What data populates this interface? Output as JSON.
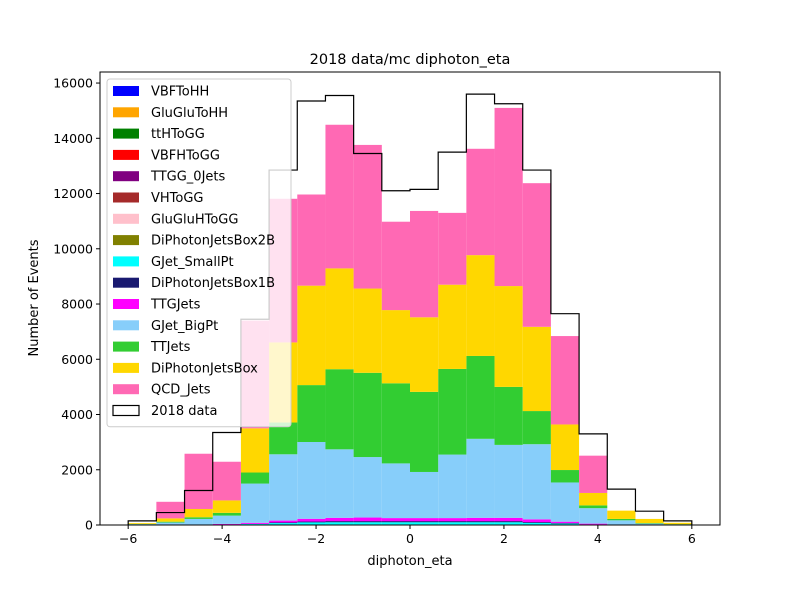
{
  "chart_data": {
    "type": "bar",
    "title": "2018 data/mc diphoton_eta",
    "xlabel": "diphoton_eta",
    "ylabel": "Number of Events",
    "xlim": [
      -6.6,
      6.6
    ],
    "ylim": [
      0,
      16400
    ],
    "xticks": [
      -6,
      -4,
      -2,
      0,
      2,
      4,
      6
    ],
    "yticks": [
      0,
      2000,
      4000,
      6000,
      8000,
      10000,
      12000,
      14000,
      16000
    ],
    "bin_edges": [
      -6,
      -5.4,
      -4.8,
      -4.2,
      -3.6,
      -3.0,
      -2.4,
      -1.8,
      -1.2,
      -0.6,
      0,
      0.6,
      1.2,
      1.8,
      2.4,
      3.0,
      3.6,
      4.2,
      4.8,
      5.4,
      6
    ],
    "legend_position": "upper-left",
    "series": [
      {
        "name": "VBFToHH",
        "color": "#0000ff",
        "values": [
          0,
          0,
          0,
          0,
          0,
          0,
          0,
          0,
          0,
          0,
          0,
          0,
          0,
          0,
          0,
          0,
          0,
          0,
          0,
          0
        ]
      },
      {
        "name": "GluGluToHH",
        "color": "#ffa500",
        "values": [
          0,
          0,
          0,
          0,
          0,
          0,
          0,
          0,
          0,
          0,
          0,
          0,
          0,
          0,
          0,
          0,
          0,
          0,
          0,
          0
        ]
      },
      {
        "name": "ttHToGG",
        "color": "#008000",
        "values": [
          0,
          0,
          0,
          0,
          0,
          0,
          0,
          0,
          0,
          0,
          0,
          0,
          0,
          0,
          0,
          0,
          0,
          0,
          0,
          0
        ]
      },
      {
        "name": "VBFHToGG",
        "color": "#ff0000",
        "values": [
          0,
          0,
          0,
          0,
          0,
          0,
          0,
          0,
          0,
          0,
          0,
          0,
          0,
          0,
          0,
          0,
          0,
          0,
          0,
          0
        ]
      },
      {
        "name": "TTGG_0Jets",
        "color": "#800080",
        "values": [
          0,
          0,
          0,
          0,
          0,
          0,
          0,
          0,
          0,
          0,
          0,
          0,
          0,
          0,
          0,
          0,
          0,
          0,
          0,
          0
        ]
      },
      {
        "name": "VHToGG",
        "color": "#a52a2a",
        "values": [
          0,
          0,
          0,
          0,
          0,
          0,
          0,
          0,
          0,
          0,
          0,
          0,
          0,
          0,
          0,
          0,
          0,
          0,
          0,
          0
        ]
      },
      {
        "name": "GluGluHToGG",
        "color": "#ffc0cb",
        "values": [
          0,
          0,
          0,
          0,
          0,
          10,
          15,
          20,
          20,
          20,
          20,
          20,
          20,
          20,
          15,
          10,
          0,
          0,
          0,
          0
        ]
      },
      {
        "name": "DiPhotonJetsBox2B",
        "color": "#808000",
        "values": [
          0,
          0,
          0,
          0,
          0,
          0,
          0,
          0,
          0,
          0,
          0,
          0,
          0,
          0,
          0,
          0,
          0,
          0,
          0,
          0
        ]
      },
      {
        "name": "GJet_SmallPt",
        "color": "#00ffff",
        "values": [
          0,
          0,
          0,
          20,
          40,
          60,
          80,
          80,
          80,
          80,
          80,
          80,
          80,
          80,
          60,
          40,
          20,
          0,
          0,
          0
        ]
      },
      {
        "name": "DiPhotonJetsBox1B",
        "color": "#191970",
        "values": [
          0,
          0,
          0,
          0,
          0,
          20,
          30,
          40,
          40,
          40,
          40,
          40,
          40,
          40,
          30,
          20,
          0,
          0,
          0,
          0
        ]
      },
      {
        "name": "TTGJets",
        "color": "#ff00ff",
        "values": [
          0,
          0,
          0,
          20,
          40,
          70,
          100,
          120,
          130,
          110,
          110,
          110,
          120,
          120,
          100,
          50,
          30,
          0,
          0,
          0
        ]
      },
      {
        "name": "GJet_BigPt",
        "color": "#87cefa",
        "values": [
          30,
          90,
          220,
          300,
          1420,
          2400,
          2780,
          2480,
          2190,
          1980,
          1670,
          2300,
          2860,
          2640,
          2720,
          1420,
          560,
          170,
          50,
          20
        ]
      },
      {
        "name": "TTJets",
        "color": "#32cd32",
        "values": [
          10,
          30,
          60,
          100,
          400,
          1150,
          2060,
          2900,
          3050,
          2900,
          2900,
          3100,
          3000,
          2100,
          1200,
          450,
          100,
          50,
          20,
          10
        ]
      },
      {
        "name": "DiPhotonJetsBox",
        "color": "#ffd700",
        "values": [
          30,
          120,
          300,
          450,
          1600,
          2900,
          3600,
          3650,
          3050,
          2650,
          2700,
          3050,
          3650,
          3650,
          3050,
          1650,
          450,
          300,
          150,
          50
        ]
      },
      {
        "name": "QCD_Jets",
        "color": "#ff69b4",
        "values": [
          0,
          600,
          2000,
          1400,
          3900,
          5200,
          3300,
          5200,
          5200,
          3200,
          3850,
          2600,
          3850,
          6450,
          5200,
          3200,
          1350,
          0,
          0,
          0
        ]
      }
    ],
    "data": {
      "name": "2018 data",
      "color": "#000000",
      "values": [
        150,
        450,
        1250,
        3350,
        7450,
        12850,
        15350,
        15550,
        13450,
        12100,
        12150,
        13500,
        15600,
        15250,
        12850,
        7650,
        3300,
        1300,
        500,
        150
      ]
    }
  }
}
